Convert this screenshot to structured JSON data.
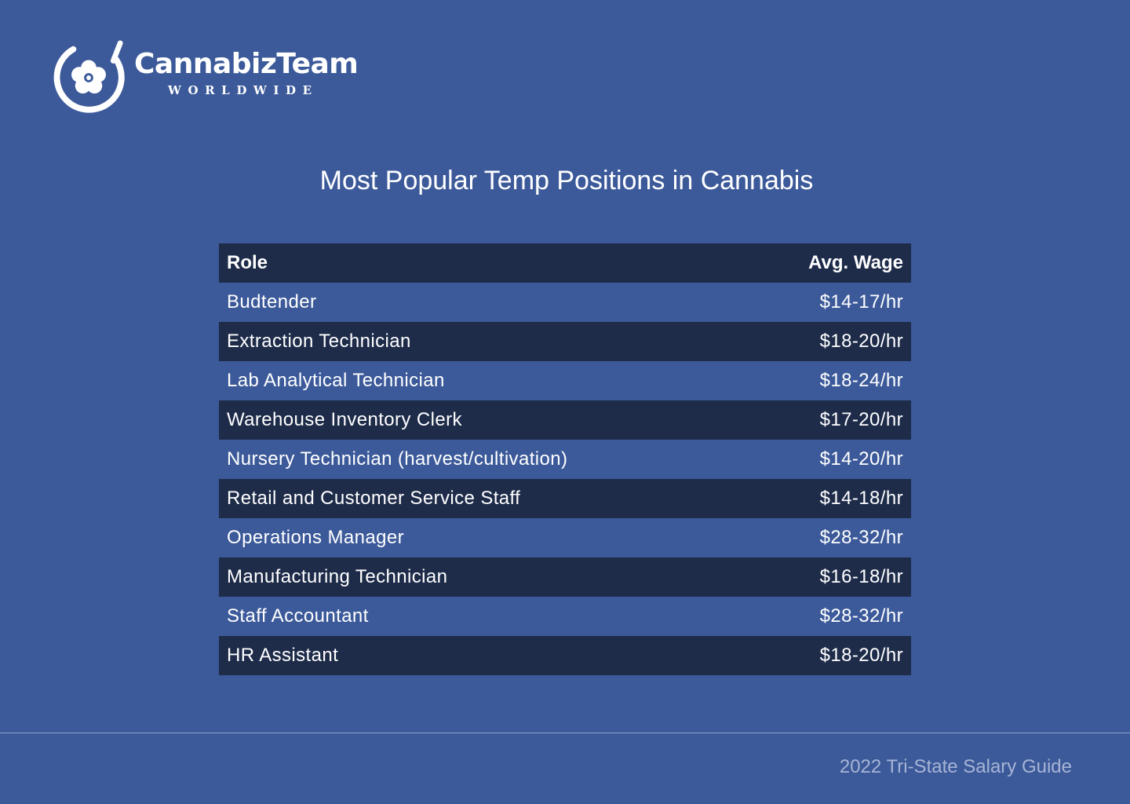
{
  "brand": {
    "logo_icon": "flower-in-circle-icon",
    "name": "CannabizTeam",
    "tagline": "WORLDWIDE"
  },
  "title": "Most Popular Temp Positions in Cannabis",
  "table": {
    "headers": [
      "Role",
      "Avg. Wage"
    ],
    "rows": [
      {
        "role": "Budtender",
        "wage": "$14-17/hr"
      },
      {
        "role": "Extraction Technician",
        "wage": "$18-20/hr"
      },
      {
        "role": "Lab Analytical Technician",
        "wage": "$18-24/hr"
      },
      {
        "role": "Warehouse Inventory Clerk",
        "wage": "$17-20/hr"
      },
      {
        "role": "Nursery Technician (harvest/cultivation)",
        "wage": "$14-20/hr"
      },
      {
        "role": "Retail and Customer Service Staff",
        "wage": "$14-18/hr"
      },
      {
        "role": "Operations Manager",
        "wage": "$28-32/hr"
      },
      {
        "role": "Manufacturing Technician",
        "wage": "$16-18/hr"
      },
      {
        "role": "Staff Accountant",
        "wage": "$28-32/hr"
      },
      {
        "role": "HR Assistant",
        "wage": "$18-20/hr"
      }
    ]
  },
  "footer": {
    "text": "2022 Tri-State Salary Guide"
  },
  "colors": {
    "background": "#3c5a9a",
    "dark_row": "#1e2c4a",
    "footer_text": "#a7b4d6"
  }
}
